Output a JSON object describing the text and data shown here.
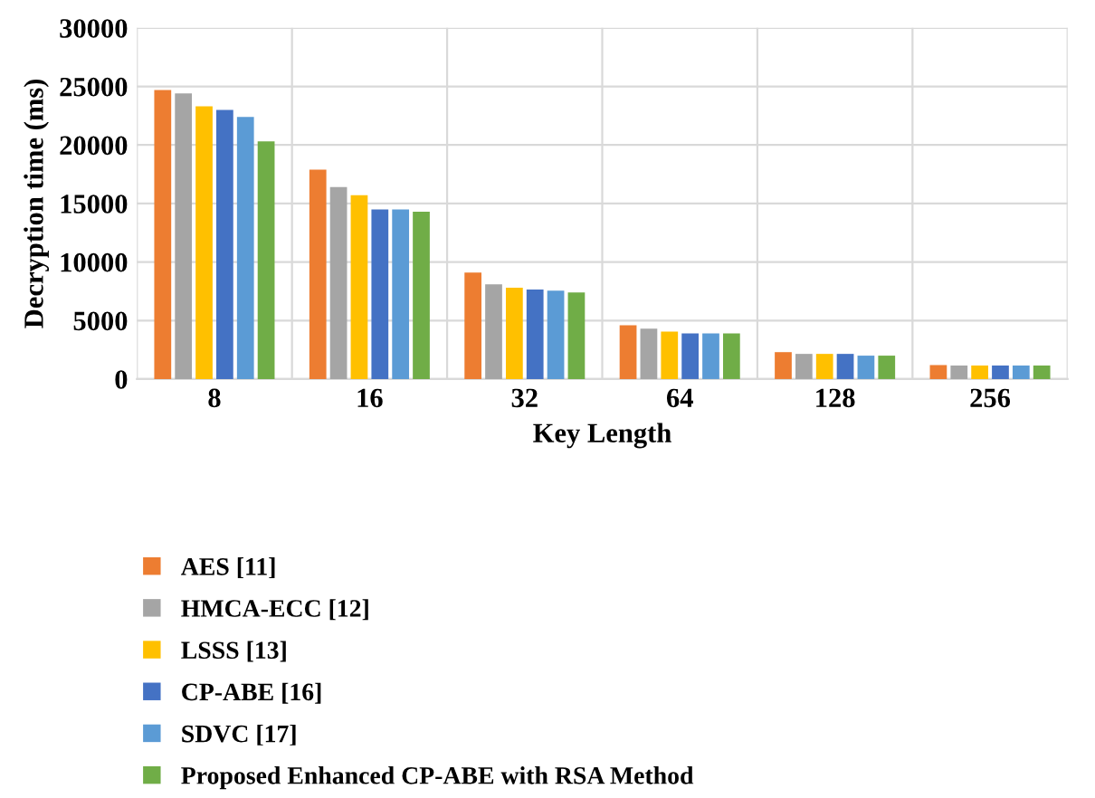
{
  "chart_data": {
    "type": "bar",
    "xlabel": "Key Length",
    "ylabel": "Decryption time (ms)",
    "categories": [
      "8",
      "16",
      "32",
      "64",
      "128",
      "256"
    ],
    "series": [
      {
        "name": "AES [11]",
        "color": "#ed7d31",
        "values": [
          24700,
          17900,
          9100,
          4600,
          2300,
          1200
        ]
      },
      {
        "name": "HMCA-ECC [12]",
        "color": "#a5a5a5",
        "values": [
          24400,
          16400,
          8100,
          4300,
          2150,
          1150
        ]
      },
      {
        "name": "LSSS [13]",
        "color": "#ffc000",
        "values": [
          23300,
          15700,
          7800,
          4050,
          2150,
          1150
        ]
      },
      {
        "name": "CP-ABE [16]",
        "color": "#4472c4",
        "values": [
          23000,
          14500,
          7650,
          3900,
          2150,
          1150
        ]
      },
      {
        "name": "SDVC [17]",
        "color": "#5b9bd5",
        "values": [
          22400,
          14500,
          7550,
          3900,
          2000,
          1150
        ]
      },
      {
        "name": "Proposed Enhanced CP-ABE with RSA Method",
        "color": "#70ad47",
        "values": [
          20300,
          14300,
          7400,
          3900,
          2000,
          1150
        ]
      }
    ],
    "ylim": [
      0,
      30000
    ],
    "yticks": [
      0,
      5000,
      10000,
      15000,
      20000,
      25000,
      30000
    ],
    "grid": true,
    "legend": "bottom"
  }
}
